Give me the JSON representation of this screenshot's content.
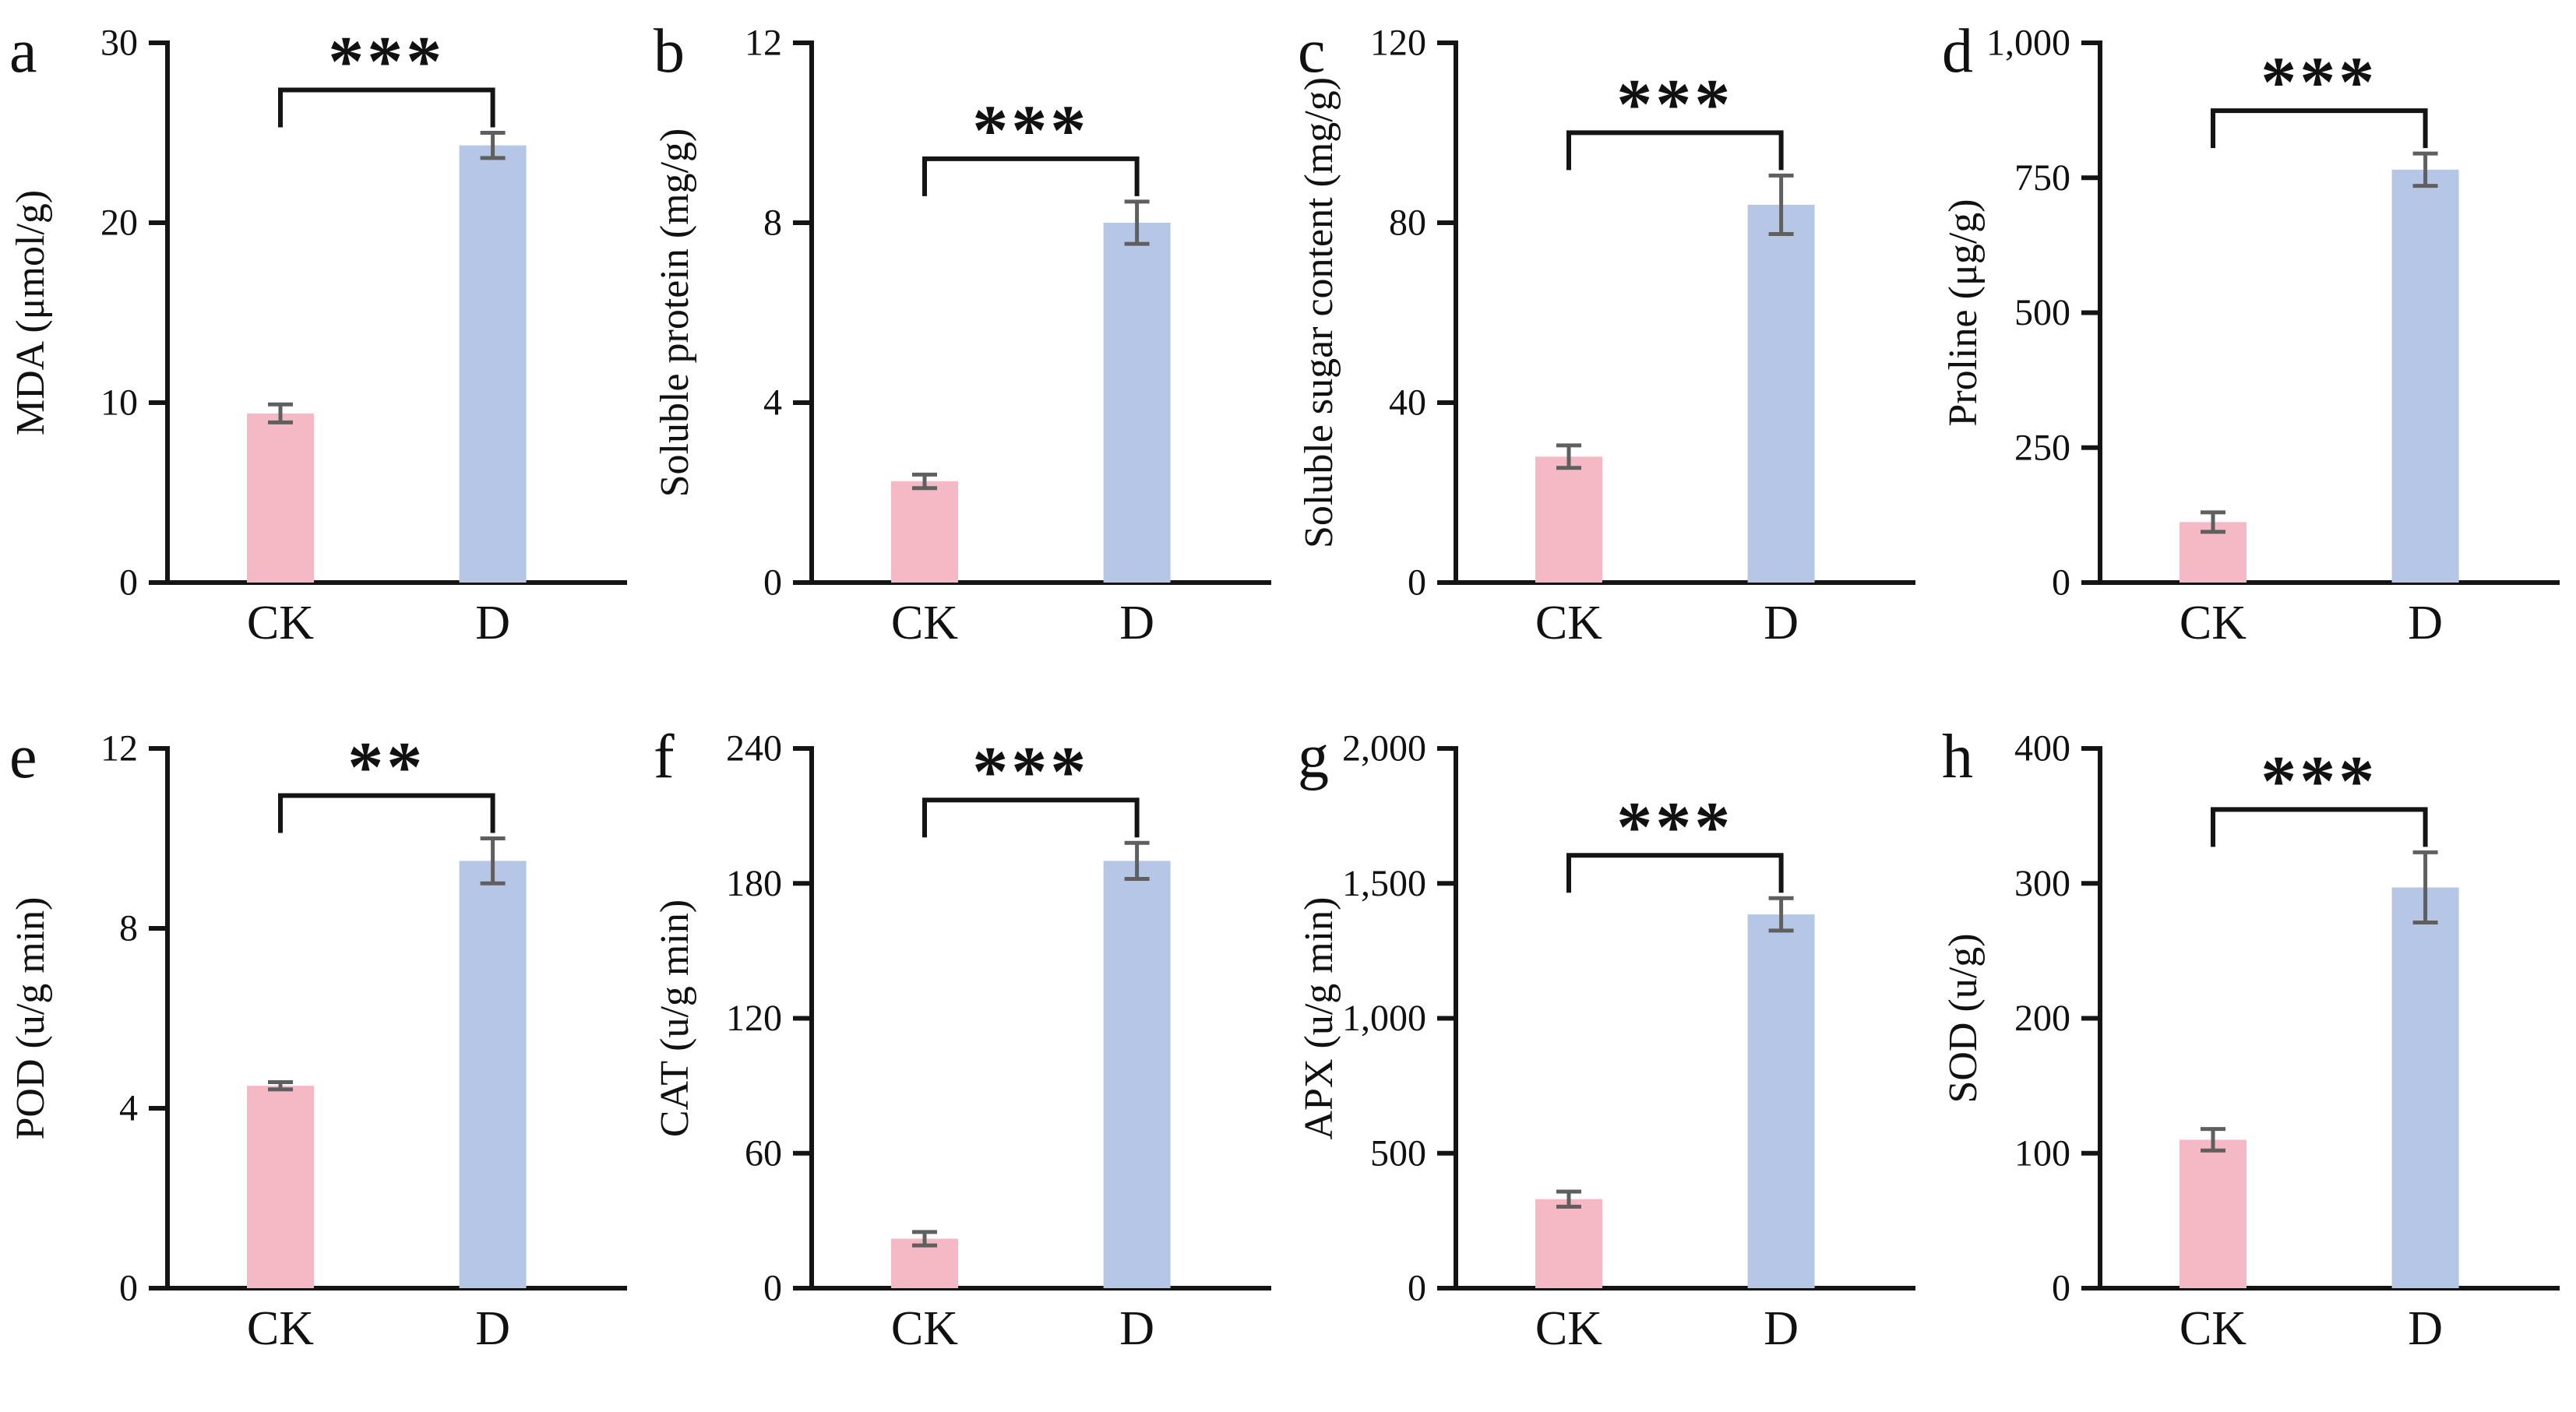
{
  "figure": {
    "description": "Eight-panel bar chart figure comparing control (CK) vs drought (D) physiological and antioxidant measurements",
    "group_labels": [
      "CK",
      "D"
    ]
  },
  "colors": {
    "ck_bar": "#f5b9c5",
    "d_bar": "#b6c6e7",
    "error_bar": "#5f5f5f",
    "axis": "#141414",
    "text": "#111111",
    "background": "#ffffff"
  },
  "chart_data": [
    {
      "panel": "a",
      "type": "bar",
      "ylabel": "MDA (μmol/g)",
      "categories": [
        "CK",
        "D"
      ],
      "values": [
        9.4,
        24.3
      ],
      "errors": [
        0.5,
        0.7
      ],
      "ylim": [
        0,
        30
      ],
      "yticks": [
        0,
        10,
        20,
        30
      ],
      "ytick_labels": [
        "0",
        "10",
        "20",
        "30"
      ],
      "significance": "***",
      "grid": false,
      "legend": "none"
    },
    {
      "panel": "b",
      "type": "bar",
      "ylabel": "Soluble protein (mg/g)",
      "categories": [
        "CK",
        "D"
      ],
      "values": [
        2.25,
        8.0
      ],
      "errors": [
        0.15,
        0.47
      ],
      "ylim": [
        0,
        12
      ],
      "yticks": [
        0,
        4,
        8,
        12
      ],
      "ytick_labels": [
        "0",
        "4",
        "8",
        "12"
      ],
      "significance": "***",
      "grid": false,
      "legend": "none"
    },
    {
      "panel": "c",
      "type": "bar",
      "ylabel": "Soluble sugar content (mg/g)",
      "categories": [
        "CK",
        "D"
      ],
      "values": [
        28,
        84
      ],
      "errors": [
        2.5,
        6.5
      ],
      "ylim": [
        0,
        120
      ],
      "yticks": [
        0,
        40,
        80,
        120
      ],
      "ytick_labels": [
        "0",
        "40",
        "80",
        "120"
      ],
      "significance": "***",
      "grid": false,
      "legend": "none"
    },
    {
      "panel": "d",
      "type": "bar",
      "ylabel": "Proline (μg/g)",
      "categories": [
        "CK",
        "D"
      ],
      "values": [
        112,
        765
      ],
      "errors": [
        18,
        30
      ],
      "ylim": [
        0,
        1000
      ],
      "yticks": [
        0,
        250,
        500,
        750,
        1000
      ],
      "ytick_labels": [
        "0",
        "250",
        "500",
        "750",
        "1,000"
      ],
      "significance": "***",
      "grid": false,
      "legend": "none"
    },
    {
      "panel": "e",
      "type": "bar",
      "ylabel": "POD (u/g min)",
      "categories": [
        "CK",
        "D"
      ],
      "values": [
        4.5,
        9.5
      ],
      "errors": [
        0.08,
        0.5
      ],
      "ylim": [
        0,
        12
      ],
      "yticks": [
        0,
        4,
        8,
        12
      ],
      "ytick_labels": [
        "0",
        "4",
        "8",
        "12"
      ],
      "significance": "**",
      "grid": false,
      "legend": "none"
    },
    {
      "panel": "f",
      "type": "bar",
      "ylabel": "CAT (u/g min)",
      "categories": [
        "CK",
        "D"
      ],
      "values": [
        22,
        190
      ],
      "errors": [
        3,
        8
      ],
      "ylim": [
        0,
        240
      ],
      "yticks": [
        0,
        60,
        120,
        180,
        240
      ],
      "ytick_labels": [
        "0",
        "60",
        "120",
        "180",
        "240"
      ],
      "significance": "***",
      "grid": false,
      "legend": "none"
    },
    {
      "panel": "g",
      "type": "bar",
      "ylabel": "APX (u/g min)",
      "categories": [
        "CK",
        "D"
      ],
      "values": [
        330,
        1385
      ],
      "errors": [
        28,
        60
      ],
      "ylim": [
        0,
        2000
      ],
      "yticks": [
        0,
        500,
        1000,
        1500,
        2000
      ],
      "ytick_labels": [
        "0",
        "500",
        "1,000",
        "1,500",
        "2,000"
      ],
      "significance": "***",
      "grid": false,
      "legend": "none"
    },
    {
      "panel": "h",
      "type": "bar",
      "ylabel": "SOD (u/g)",
      "categories": [
        "CK",
        "D"
      ],
      "values": [
        110,
        297
      ],
      "errors": [
        8,
        26
      ],
      "ylim": [
        0,
        400
      ],
      "yticks": [
        0,
        100,
        200,
        300,
        400
      ],
      "ytick_labels": [
        "0",
        "100",
        "200",
        "300",
        "400"
      ],
      "significance": "***",
      "grid": false,
      "legend": "none"
    }
  ]
}
